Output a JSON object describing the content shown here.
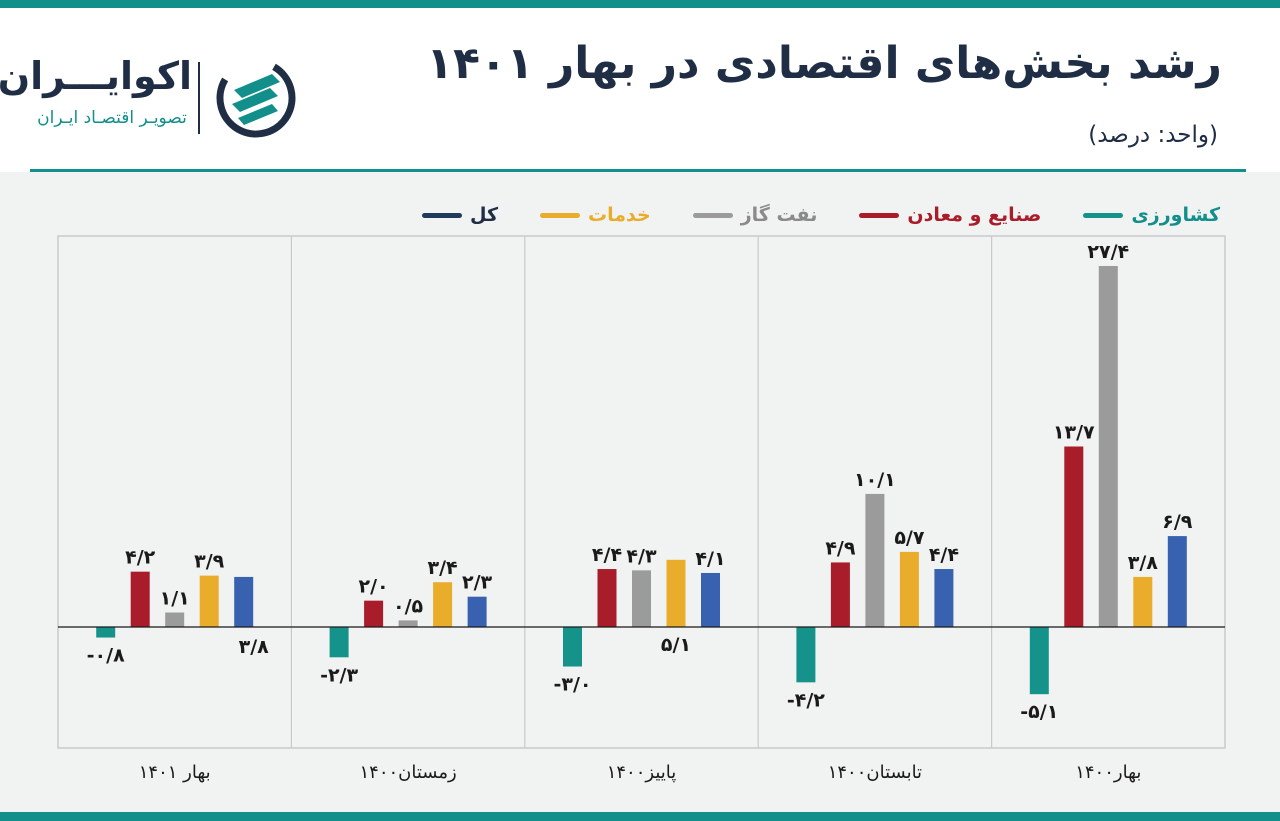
{
  "header": {
    "title": "رشد بخش‌های اقتصادی در بهار ۱۴۰۱",
    "unit": "(واحد: درصد)"
  },
  "logo": {
    "name": "اکوایـــران",
    "tagline": "تصویـر اقتصـاد ایـران"
  },
  "colors": {
    "teal": "#128f8b",
    "navy": "#1f2d45",
    "agriculture": "#15938b",
    "industry": "#a91d2b",
    "oil_gas": "#9b9b9b",
    "services": "#e9ad2b",
    "total": "#3862b0"
  },
  "chart_data": {
    "type": "bar",
    "title": "رشد بخش‌های اقتصادی در بهار ۱۴۰۱",
    "ylabel": "درصد",
    "categories": [
      "بهار۱۴۰۰",
      "تابستان۱۴۰۰",
      "پاییز۱۴۰۰",
      "زمستان۱۴۰۰",
      "بهار ۱۴۰۱"
    ],
    "series": [
      {
        "name": "کشاورزی",
        "color": "#15938b",
        "values": [
          -5.1,
          -4.2,
          -3.0,
          -2.3,
          -0.8
        ],
        "labels": [
          "-۵/۱",
          "-۴/۲",
          "-۳/۰",
          "-۲/۳",
          "-۰/۸"
        ]
      },
      {
        "name": "صنایع و معادن",
        "color": "#a91d2b",
        "values": [
          13.7,
          4.9,
          4.4,
          2.0,
          4.2
        ],
        "labels": [
          "۱۳/۷",
          "۴/۹",
          "۴/۴",
          "۲/۰",
          "۴/۲"
        ]
      },
      {
        "name": "نفت گاز",
        "color": "#9b9b9b",
        "values": [
          27.4,
          10.1,
          4.3,
          0.5,
          1.1
        ],
        "labels": [
          "۲۷/۴",
          "۱۰/۱",
          "۴/۳",
          "۰/۵",
          "۱/۱"
        ]
      },
      {
        "name": "خدمات",
        "color": "#e9ad2b",
        "values": [
          3.8,
          5.7,
          5.1,
          3.4,
          3.9
        ],
        "labels": [
          "۳/۸",
          "۵/۷",
          "۵/۱",
          "۳/۴",
          "۳/۹"
        ]
      },
      {
        "name": "کل",
        "color": "#3862b0",
        "values": [
          6.9,
          4.4,
          4.1,
          2.3,
          3.8
        ],
        "labels": [
          "۶/۹",
          "۴/۴",
          "۴/۱",
          "۲/۳",
          "۳/۸"
        ]
      }
    ],
    "ylim": [
      -9.3,
      29.9
    ],
    "legend_position": "top-right",
    "grid": false
  }
}
